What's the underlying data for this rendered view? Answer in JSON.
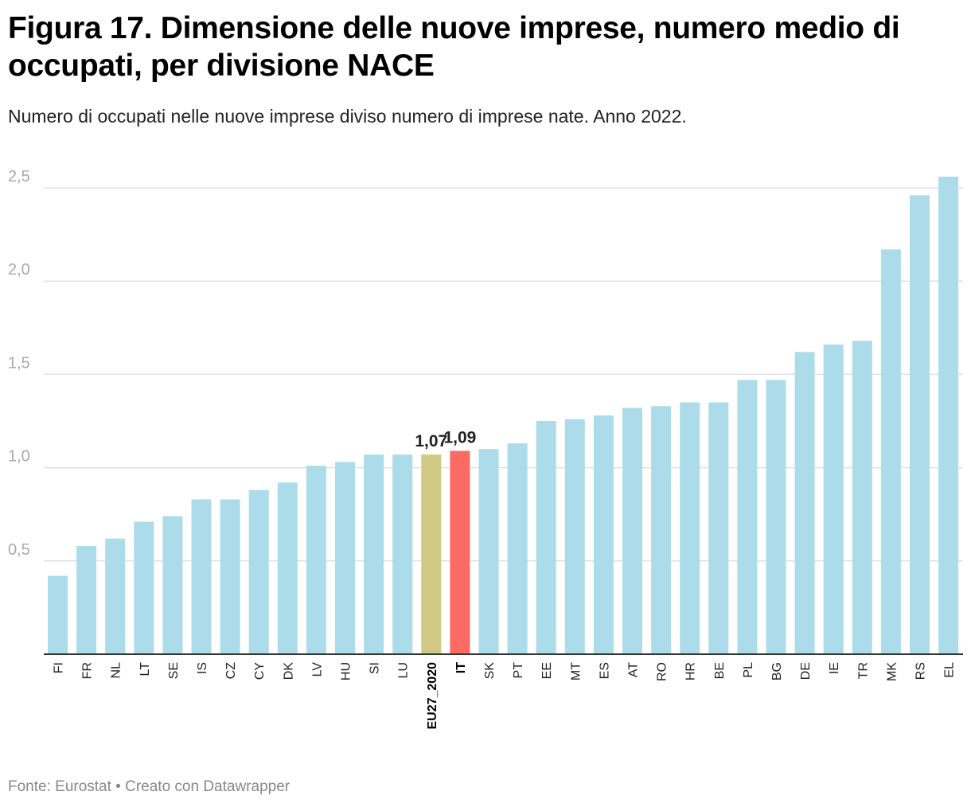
{
  "header": {
    "title": "Figura 17. Dimensione delle nuove imprese, numero medio di occupati, per divisione NACE",
    "subtitle": "Numero di occupati nelle nuove imprese diviso numero di imprese nate. Anno 2022."
  },
  "footer": {
    "source": "Fonte: Eurostat • Creato con Datawrapper"
  },
  "colors": {
    "default_bar": "#acdcea",
    "eu_bar": "#d0c983",
    "it_bar": "#fc6b63",
    "gridline": "#e2e2e2",
    "axis": "#333333"
  },
  "chart_data": {
    "type": "bar",
    "title": "Figura 17. Dimensione delle nuove imprese, numero medio di occupati, per divisione NACE",
    "subtitle": "Numero di occupati nelle nuove imprese diviso numero di imprese nate. Anno 2022.",
    "xlabel": "",
    "ylabel": "",
    "ylim": [
      0,
      2.6
    ],
    "yticks": [
      0.5,
      1.0,
      1.5,
      2.0,
      2.5
    ],
    "ytick_labels": [
      "0,5",
      "1,0",
      "1,5",
      "2,0",
      "2,5"
    ],
    "grid": true,
    "categories": [
      "FI",
      "FR",
      "NL",
      "LT",
      "SE",
      "IS",
      "CZ",
      "CY",
      "DK",
      "LV",
      "HU",
      "SI",
      "LU",
      "EU27_2020",
      "IT",
      "SK",
      "PT",
      "EE",
      "MT",
      "ES",
      "AT",
      "RO",
      "HR",
      "BE",
      "PL",
      "BG",
      "DE",
      "IE",
      "TR",
      "MK",
      "RS",
      "EL"
    ],
    "values": [
      0.42,
      0.58,
      0.62,
      0.71,
      0.74,
      0.83,
      0.83,
      0.88,
      0.92,
      1.01,
      1.03,
      1.07,
      1.07,
      1.07,
      1.09,
      1.1,
      1.13,
      1.25,
      1.26,
      1.28,
      1.32,
      1.33,
      1.35,
      1.35,
      1.47,
      1.47,
      1.62,
      1.66,
      1.68,
      2.17,
      2.46,
      2.56
    ],
    "highlights": [
      {
        "category": "EU27_2020",
        "color_key": "eu_bar",
        "label": "1,07",
        "bold_category": true
      },
      {
        "category": "IT",
        "color_key": "it_bar",
        "label": "1,09",
        "bold_category": true
      }
    ]
  }
}
